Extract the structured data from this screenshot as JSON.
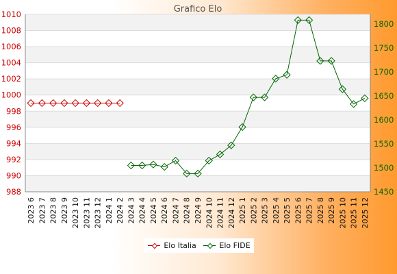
{
  "chart_data": {
    "type": "line",
    "title": "Grafico Elo",
    "categories": [
      "2023 6",
      "2023 7",
      "2023 8",
      "2023 9",
      "2023 10",
      "2023 11",
      "2023 12",
      "2024 1",
      "2024 2",
      "2024 3",
      "2024 4",
      "2024 5",
      "2024 6",
      "2024 7",
      "2024 8",
      "2024 9",
      "2024 10",
      "2024 11",
      "2024 12",
      "2025 1",
      "2025 2",
      "2025 3",
      "2025 4",
      "2025 5",
      "2025 6",
      "2025 7",
      "2025 8",
      "2025 9",
      "2025 10",
      "2025 11",
      "2025 12"
    ],
    "y_left": {
      "ylim": [
        988,
        1010
      ],
      "ticks": [
        988,
        990,
        992,
        994,
        996,
        998,
        1000,
        1002,
        1004,
        1006,
        1008,
        1010
      ],
      "color": "#cc0000"
    },
    "y_right": {
      "ylim": [
        1450,
        1820
      ],
      "ticks": [
        1450,
        1500,
        1550,
        1600,
        1650,
        1700,
        1750,
        1800
      ],
      "color": "#006600"
    },
    "series": [
      {
        "name": "Elo Italia",
        "axis": "left",
        "color": "#cc0000",
        "values": [
          999,
          999,
          999,
          999,
          999,
          999,
          999,
          999,
          999,
          null,
          null,
          null,
          null,
          null,
          null,
          null,
          null,
          null,
          null,
          null,
          null,
          null,
          null,
          null,
          null,
          null,
          null,
          null,
          null,
          null,
          null
        ]
      },
      {
        "name": "Elo FIDE",
        "axis": "right",
        "color": "#006600",
        "values": [
          null,
          null,
          null,
          null,
          null,
          null,
          null,
          null,
          null,
          1505,
          1505,
          1507,
          1502,
          1515,
          1488,
          1488,
          1515,
          1528,
          1547,
          1585,
          1647,
          1647,
          1686,
          1694,
          1808,
          1808,
          1723,
          1723,
          1664,
          1633,
          1645
        ]
      }
    ],
    "grid": true,
    "legend": "bottom-center"
  }
}
